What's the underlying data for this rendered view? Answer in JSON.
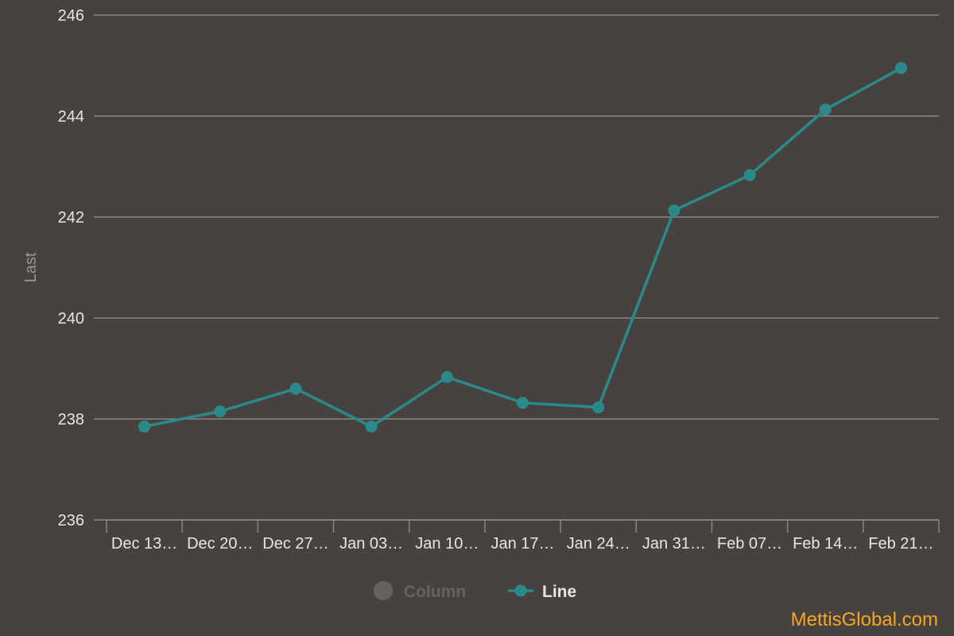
{
  "chart_data": {
    "type": "line",
    "ylabel": "Last",
    "ylim": [
      236,
      246
    ],
    "yticks": [
      236,
      238,
      240,
      242,
      244,
      246
    ],
    "grid": true,
    "legend_position": "bottom-center",
    "categories": [
      "Dec 13…",
      "Dec 20…",
      "Dec 27…",
      "Jan 03…",
      "Jan 10…",
      "Jan 17…",
      "Jan 24…",
      "Jan 31…",
      "Feb 07…",
      "Feb 14…",
      "Feb 21…"
    ],
    "series": [
      {
        "name": "Line",
        "color": "#2a8a8a",
        "values": [
          237.85,
          238.15,
          238.6,
          237.85,
          238.83,
          238.32,
          238.23,
          242.13,
          242.83,
          244.13,
          244.95
        ]
      }
    ],
    "legend": [
      {
        "label": "Column",
        "active": false,
        "color": "#666163"
      },
      {
        "label": "Line",
        "active": true,
        "color": "#2a8a8a"
      }
    ]
  },
  "watermark": "MettisGlobal.com"
}
